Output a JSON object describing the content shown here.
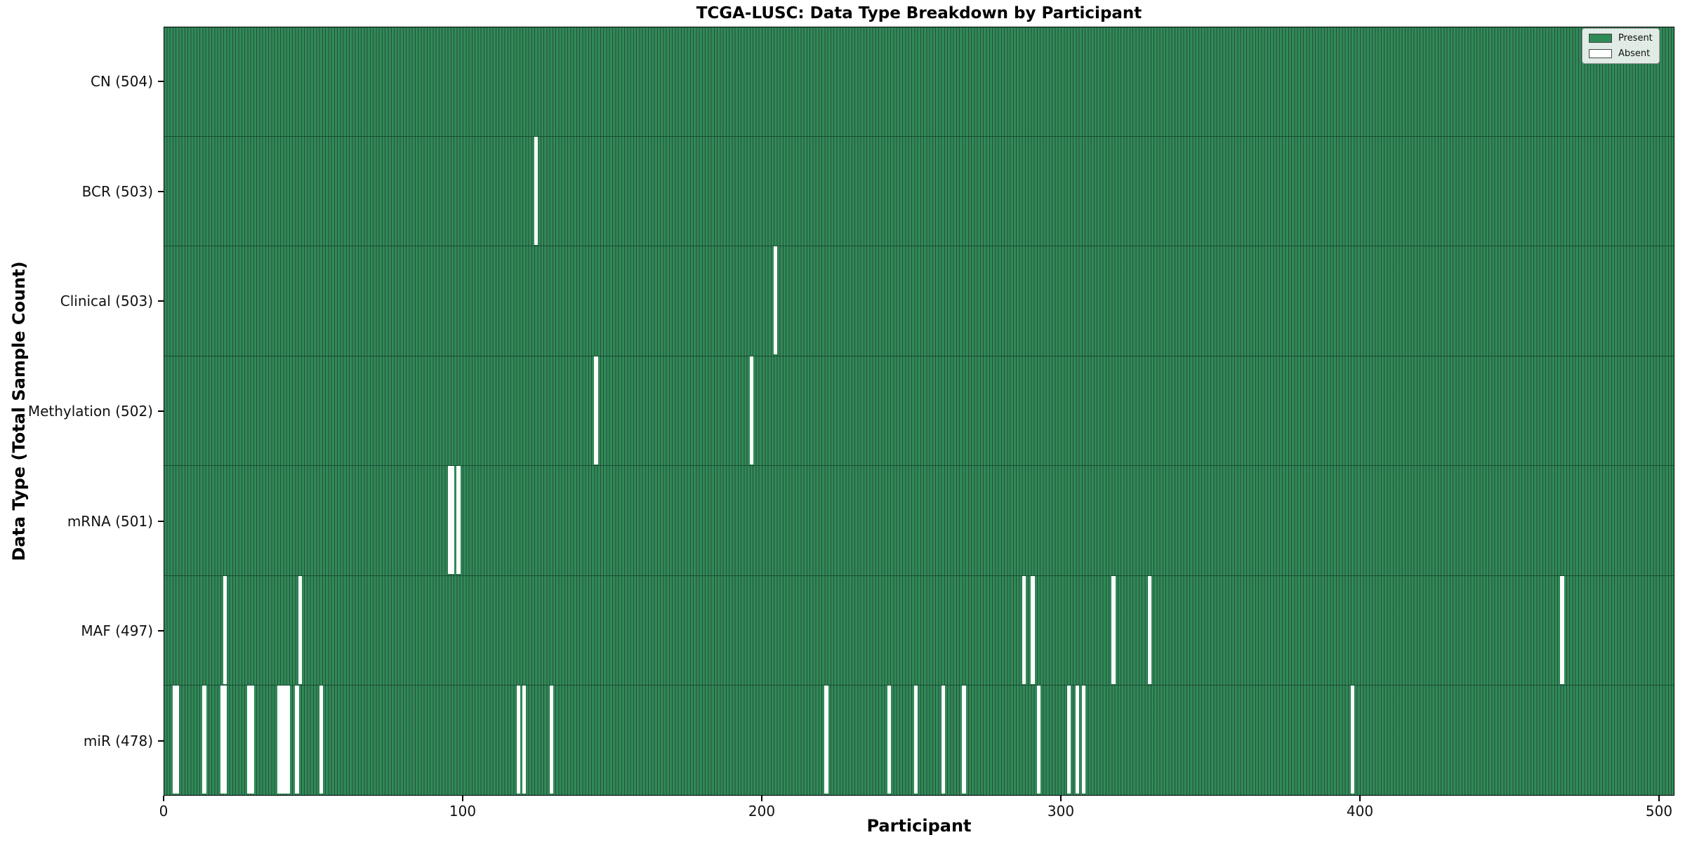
{
  "chart_data": {
    "type": "heatmap",
    "title": "TCGA-LUSC: Data Type Breakdown by Participant",
    "xlabel": "Participant",
    "ylabel": "Data Type (Total Sample Count)",
    "x_ticks": [
      0,
      100,
      200,
      300,
      400,
      500
    ],
    "x_range": [
      0,
      505
    ],
    "n_participants": 504,
    "grid": false,
    "legend": {
      "position": "upper right",
      "entries": [
        {
          "label": "Present",
          "color": "#2e8b57"
        },
        {
          "label": "Absent",
          "color": "#ffffff"
        }
      ]
    },
    "colors": {
      "present": "#2e8b57",
      "absent": "#ffffff",
      "bar_edge": "#123d26",
      "axis": "#000000"
    },
    "rows": [
      {
        "data_type": "CN",
        "label": "CN (504)",
        "total": 504,
        "absent_participants": []
      },
      {
        "data_type": "BCR",
        "label": "BCR (503)",
        "total": 503,
        "absent_participants": [
          124
        ]
      },
      {
        "data_type": "Clinical",
        "label": "Clinical (503)",
        "total": 503,
        "absent_participants": [
          204
        ]
      },
      {
        "data_type": "Methylation",
        "label": "Methylation (502)",
        "total": 502,
        "absent_participants": [
          144,
          196
        ]
      },
      {
        "data_type": "mRNA",
        "label": "mRNA (501)",
        "total": 501,
        "absent_participants": [
          95,
          96,
          98
        ]
      },
      {
        "data_type": "MAF",
        "label": "MAF (497)",
        "total": 497,
        "absent_participants": [
          20,
          45,
          287,
          290,
          317,
          329,
          467
        ]
      },
      {
        "data_type": "miR",
        "label": "miR (478)",
        "total": 478,
        "absent_participants": [
          3,
          4,
          13,
          19,
          20,
          28,
          29,
          38,
          39,
          40,
          41,
          44,
          52,
          118,
          120,
          129,
          221,
          242,
          251,
          260,
          267,
          292,
          302,
          305,
          307,
          397
        ]
      }
    ]
  }
}
